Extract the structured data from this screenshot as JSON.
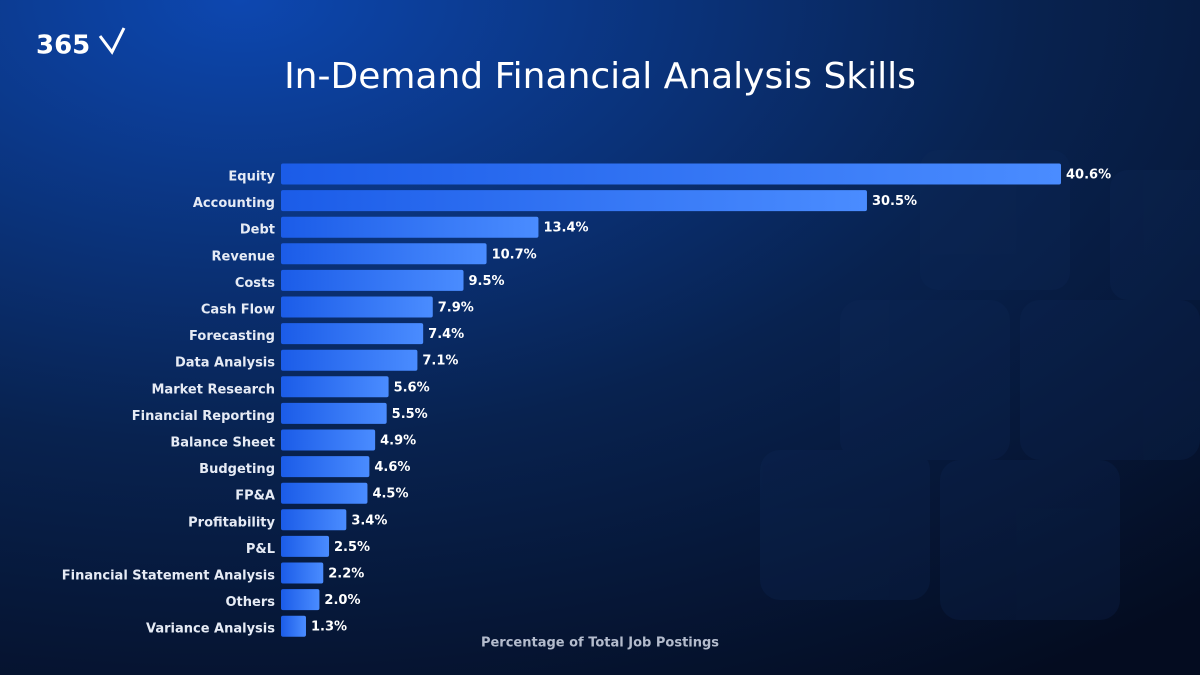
{
  "brand": "365",
  "chart_data": {
    "type": "bar",
    "orientation": "horizontal",
    "title": "In-Demand Financial Analysis Skills",
    "x_label": "Percentage of Total Job Postings",
    "categories": [
      "Equity",
      "Accounting",
      "Debt",
      "Revenue",
      "Costs",
      "Cash Flow",
      "Forecasting",
      "Data Analysis",
      "Market Research",
      "Financial Reporting",
      "Balance Sheet",
      "Budgeting",
      "FP&A",
      "Profitability",
      "P&L",
      "Financial Statement Analysis",
      "Others",
      "Variance Analysis"
    ],
    "values": [
      40.6,
      30.5,
      13.4,
      10.7,
      9.5,
      7.9,
      7.4,
      7.1,
      5.6,
      5.5,
      4.9,
      4.6,
      4.5,
      3.4,
      2.5,
      2.2,
      2.0,
      1.3
    ],
    "value_labels": [
      "40.6%",
      "30.5%",
      "13.4%",
      "10.7%",
      "9.5%",
      "7.9%",
      "7.4%",
      "7.1%",
      "5.6%",
      "5.5%",
      "4.9%",
      "4.6%",
      "4.5%",
      "3.4%",
      "2.5%",
      "2.2%",
      "2.0%",
      "1.3%"
    ],
    "color": "#2f74f5"
  }
}
